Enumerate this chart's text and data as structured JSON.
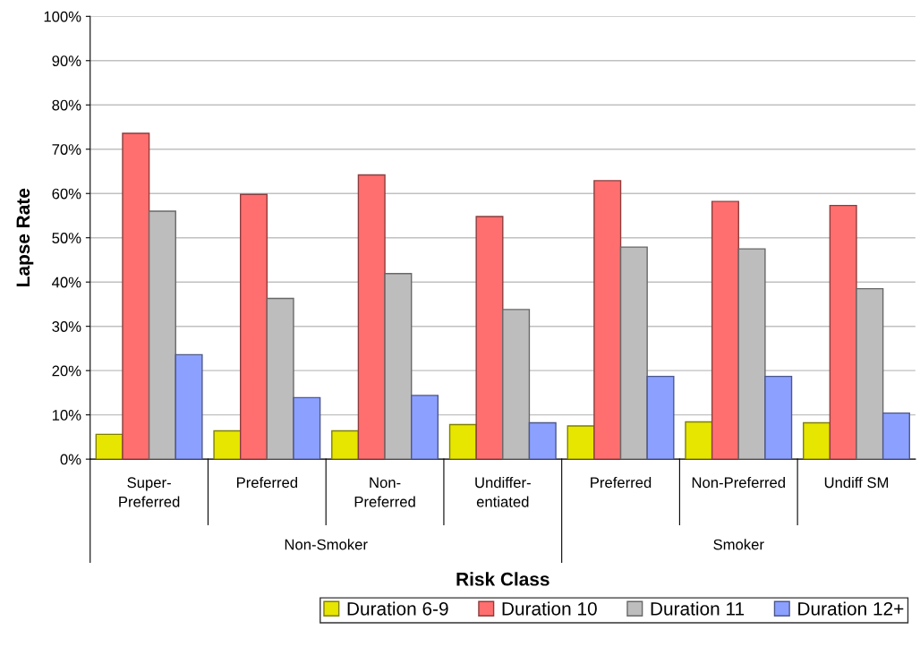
{
  "chart_data": {
    "type": "bar",
    "xlabel": "Risk Class",
    "ylabel": "Lapse Rate",
    "categories": [
      "Super-\nPreferred",
      "Preferred",
      "Non-\nPreferred",
      "Undiffer-\nentiated",
      "Preferred",
      "Non-Preferred",
      "Undiff SM"
    ],
    "series": [
      {
        "name": "Duration 6-9",
        "color": "#e6e600",
        "values": [
          5.6,
          6.4,
          6.4,
          7.8,
          7.5,
          8.4,
          8.2
        ]
      },
      {
        "name": "Duration 10",
        "color": "#ff6f6f",
        "values": [
          73.6,
          59.8,
          64.2,
          54.8,
          62.9,
          58.2,
          57.3
        ]
      },
      {
        "name": "Duration 11",
        "color": "#bdbdbd",
        "values": [
          56.0,
          36.3,
          41.9,
          33.8,
          47.9,
          47.5,
          38.5
        ]
      },
      {
        "name": "Duration 12+",
        "color": "#8ca0ff",
        "values": [
          23.6,
          13.9,
          14.4,
          8.2,
          18.7,
          18.7,
          10.4
        ]
      }
    ],
    "ylim": [
      0,
      100
    ],
    "yticks": [
      {
        "value": 0,
        "label": "0%"
      },
      {
        "value": 10,
        "label": "10%"
      },
      {
        "value": 20,
        "label": "20%"
      },
      {
        "value": 30,
        "label": "30%"
      },
      {
        "value": 40,
        "label": "40%"
      },
      {
        "value": 50,
        "label": "50%"
      },
      {
        "value": 60,
        "label": "60%"
      },
      {
        "value": 70,
        "label": "70%"
      },
      {
        "value": 80,
        "label": "80%"
      },
      {
        "value": 90,
        "label": "90%"
      },
      {
        "value": 100,
        "label": "100%"
      }
    ],
    "annotations": [
      "Non-Smoker",
      "Smoker"
    ],
    "grid": "y",
    "legend": "bottom"
  }
}
